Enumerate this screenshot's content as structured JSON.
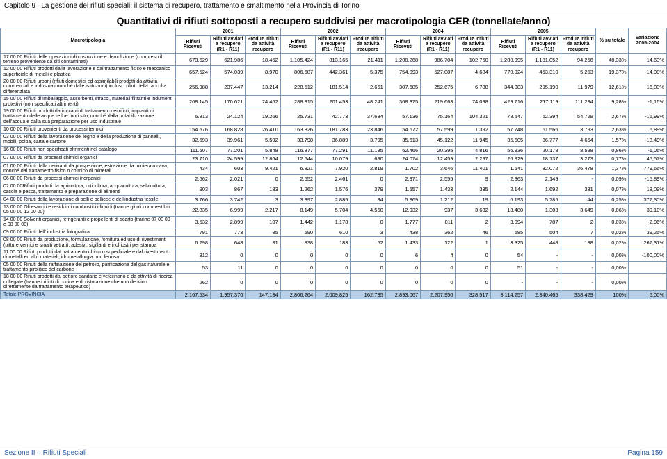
{
  "header": "Capitolo 9 –La gestione dei rifiuti speciali: il sistema di recupero, trattamento e smaltimento nella Provincia di Torino",
  "title": "Quantitativi di rifiuti sottoposti a recupero suddivisi per macrotipologia CER (tonnellate/anno)",
  "footer_left": "Sezione II – Rifiuti Speciali",
  "footer_right": "Pagina 159",
  "years": [
    "2001",
    "2002",
    "2004",
    "2005"
  ],
  "col_macrotipologia": "Macrotipologia",
  "col_ricevuti": "Rifiuti Ricevuti",
  "col_avviati": "Rifiuti avviati a recupero (R1 - R11)",
  "col_produz": "Produz. rifiuti da attività recupero",
  "col_pct": "% su totale",
  "col_var": "variazione 2005-2004",
  "total_label": "Totale PROVINCIA",
  "colors": {
    "border": "#7a99b8",
    "total_bg": "#b7d0e8",
    "footer_text": "#2a5a9e"
  },
  "rows": [
    {
      "cat": "17 00 00 Rifiuti delle operazioni di costruzione e demolizione (compreso il terreno proveniente da siti contaminati)",
      "v": [
        "673.629",
        "621.986",
        "18.462",
        "1.105.424",
        "813.165",
        "21.411",
        "1.200.268",
        "986.704",
        "102.750",
        "1.280.995",
        "1.131.052",
        "94.256",
        "48,33%",
        "14,63%"
      ]
    },
    {
      "cat": "12 00 00 Rifiuti prodotti dalla lavorazione e dal trattamento fisico e meccanico superficiale di metalli e plastica",
      "v": [
        "657.524",
        "574.039",
        "8.970",
        "806.687",
        "442.361",
        "5.375",
        "754.093",
        "527.087",
        "4.684",
        "770.924",
        "453.310",
        "5.253",
        "19,37%",
        "-14,00%"
      ]
    },
    {
      "cat": "20 00 00 Rifiuti urbani (rifiuti domestici ed assimilabili prodotti da attività commerciali e industriali nonché dalle istituzioni) inclusi i rifiuti della raccolta differenziata",
      "v": [
        "256.988",
        "237.447",
        "13.214",
        "228.512",
        "181.514",
        "2.661",
        "307.685",
        "252.675",
        "6.788",
        "344.083",
        "295.190",
        "11.979",
        "12,61%",
        "16,83%"
      ]
    },
    {
      "cat": "15 00 00 Rifiuti di Imballaggio, assorbenti, stracci, materiali filtranti e indumenti protettivi (non specificati altrimenti)",
      "v": [
        "208.145",
        "170.621",
        "24.462",
        "288.315",
        "201.453",
        "48.241",
        "368.375",
        "219.663",
        "74.098",
        "429.716",
        "217.119",
        "111.234",
        "9,28%",
        "-1,16%"
      ]
    },
    {
      "cat": "19 00 00 Rifiuti prodotti da impianti di trattamento dei rifiuti, impianti di trattamento delle acque reflue fuori sito, nonché dalla potabilizzazione dell'acqua e dalla sua preparazione per uso industriale",
      "v": [
        "6.813",
        "24.124",
        "19.266",
        "25.731",
        "42.773",
        "37.634",
        "57.136",
        "75.164",
        "104.321",
        "78.547",
        "62.394",
        "54.729",
        "2,67%",
        "-16,99%"
      ]
    },
    {
      "cat": "10 00 00 Rifiuti provenienti da processi termici",
      "v": [
        "154.576",
        "168.828",
        "26.410",
        "163.826",
        "181.783",
        "23.846",
        "54.672",
        "57.599",
        "1.392",
        "57.748",
        "61.566",
        "3.793",
        "2,63%",
        "6,89%"
      ]
    },
    {
      "cat": "03 00 00 Rifiuti della lavorazione del legno e della produzione di pannelli, mobili, polpa, carta e cartone",
      "v": [
        "32.693",
        "39.961",
        "5.592",
        "33.798",
        "36.889",
        "3.795",
        "35.613",
        "45.122",
        "11.945",
        "35.605",
        "36.777",
        "4.664",
        "1,57%",
        "-18,49%"
      ]
    },
    {
      "cat": "16 00 00 Rifiuti non specificati altrimenti nel catalogo",
      "v": [
        "111.607",
        "77.201",
        "5.848",
        "116.377",
        "77.291",
        "11.185",
        "62.466",
        "20.395",
        "4.816",
        "56.936",
        "20.178",
        "8.598",
        "0,86%",
        "-1,06%"
      ]
    },
    {
      "cat": "07 00 00 Rifiuti da processi chimici organici",
      "v": [
        "23.710",
        "24.599",
        "12.864",
        "12.544",
        "10.079",
        "690",
        "24.074",
        "12.459",
        "2.297",
        "26.829",
        "18.137",
        "3.273",
        "0,77%",
        "45,57%"
      ]
    },
    {
      "cat": "01 00 00 Rifiuti dalla derivanti da prospezione, estrazione da miniera o cava, nonché dal trattamento fisico o chimico di minerali",
      "v": [
        "434",
        "603",
        "9.421",
        "6.821",
        "7.920",
        "2.819",
        "1.702",
        "3.646",
        "11.401",
        "1.641",
        "32.072",
        "36.478",
        "1,37%",
        "779,66%"
      ]
    },
    {
      "cat": "06 00 00 Rifiuti da processi chimici inorganici",
      "v": [
        "2.662",
        "2.021",
        "0",
        "2.552",
        "2.461",
        "0",
        "2.971",
        "2.555",
        "9",
        "2.363",
        "2.149",
        "-",
        "0,09%",
        "-15,89%"
      ]
    },
    {
      "cat": "02 00 00Rifiuti prodotti da agricoltura, orticoltura, acquacoltura, selvicoltura, caccia e pesca, trattamento e preparazione di alimenti",
      "v": [
        "903",
        "867",
        "183",
        "1.262",
        "1.576",
        "379",
        "1.557",
        "1.433",
        "335",
        "2.144",
        "1.692",
        "331",
        "0,07%",
        "18,09%"
      ]
    },
    {
      "cat": "04 00 00 Rifiuti della lavorazione di pelli e pellicce e dell'industria tessile",
      "v": [
        "3.766",
        "3.742",
        "3",
        "3.397",
        "2.885",
        "84",
        "5.869",
        "1.212",
        "19",
        "6.193",
        "5.785",
        "44",
        "0,25%",
        "377,30%"
      ]
    },
    {
      "cat": "13 00 00 Oli esauriti e residui di combustibili liquidi (tranne gli oli commestibili 05 00 00 12 00 00)",
      "v": [
        "22.835",
        "6.999",
        "2.217",
        "8.149",
        "5.704",
        "4.560",
        "12.932",
        "937",
        "3.632",
        "13.480",
        "1.303",
        "3.649",
        "0,06%",
        "39,10%"
      ]
    },
    {
      "cat": "14 00 00 Solventi organici, refrigeranti e propellenti di scarto (tranne 07 00 00 e 08 00 00)",
      "v": [
        "3.532",
        "2.899",
        "107",
        "1.442",
        "1.178",
        "0",
        "1.777",
        "811",
        "2",
        "3.094",
        "787",
        "2",
        "0,03%",
        "-2,96%"
      ]
    },
    {
      "cat": "09 00 00 Rifiuti dell' industria fotografica",
      "v": [
        "791",
        "773",
        "85",
        "590",
        "610",
        "3",
        "438",
        "362",
        "46",
        "585",
        "504",
        "7",
        "0,02%",
        "39,25%"
      ]
    },
    {
      "cat": "08 00 00 Rifiuti da produzione, formulazione, fornitura ed uso di rivestimenti (pitture,vernici e smalti vetrati), adesivi, sigillanti e inchiostri per stampa",
      "v": [
        "6.298",
        "648",
        "31",
        "838",
        "183",
        "52",
        "1.433",
        "122",
        "1",
        "3.325",
        "448",
        "138",
        "0,02%",
        "267,31%"
      ]
    },
    {
      "cat": "11 00 00 Rifiuti prodotti dal trattamento chimico superficiale e dal rivestimento di metalli ed altri materiali; idrometallurgia non ferrosa",
      "v": [
        "312",
        "0",
        "0",
        "0",
        "0",
        "0",
        "6",
        "4",
        "0",
        "54",
        "-",
        "-",
        "0,00%",
        "-100,00%"
      ]
    },
    {
      "cat": "05 00 00 Rifiuti della raffinazione del petrolio, purificazione del gas naturale e trattamento pirolitico del carbone",
      "v": [
        "53",
        "11",
        "0",
        "0",
        "0",
        "0",
        "0",
        "0",
        "0",
        "51",
        "-",
        "-",
        "0,00%",
        ""
      ]
    },
    {
      "cat": "18 00 00 Rifiuti prodotti dal settore sanitario e veterinario o da attività di ricerca collegate (tranne i rifiuti di cucina e di ristorazione che non derivino direttamente da trattamento terapeutico)",
      "v": [
        "262",
        "0",
        "0",
        "0",
        "0",
        "0",
        "0",
        "0",
        "0",
        "-",
        "-",
        "-",
        "0,00%",
        ""
      ]
    }
  ],
  "total": [
    "2.167.534",
    "1.957.370",
    "147.134",
    "2.806.264",
    "2.009.825",
    "162.735",
    "2.893.067",
    "2.207.950",
    "328.517",
    "3.114.257",
    "2.340.465",
    "338.429",
    "100%",
    "6,00%"
  ]
}
